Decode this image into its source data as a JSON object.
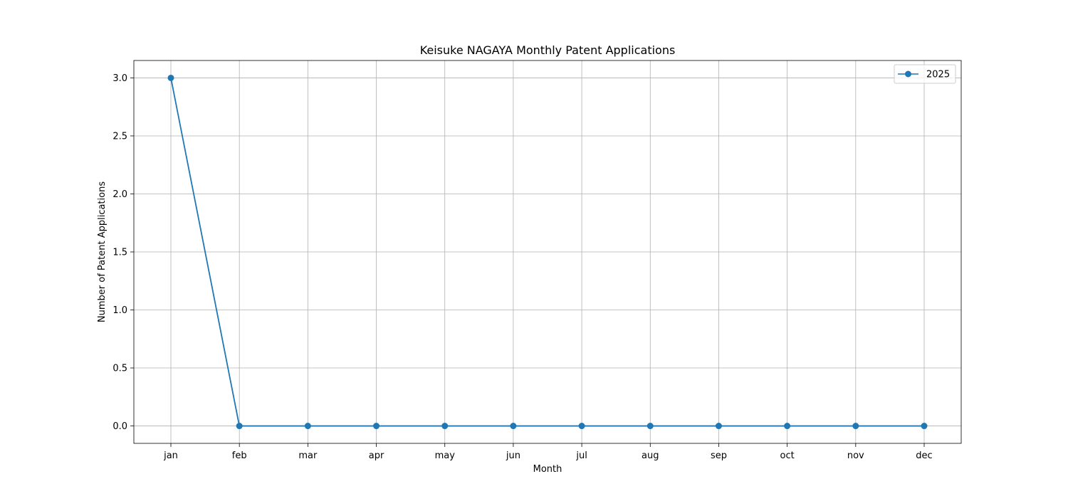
{
  "chart_data": {
    "type": "line",
    "title": "Keisuke NAGAYA Monthly Patent Applications",
    "xlabel": "Month",
    "ylabel": "Number of Patent Applications",
    "categories": [
      "jan",
      "feb",
      "mar",
      "apr",
      "may",
      "jun",
      "jul",
      "aug",
      "sep",
      "oct",
      "nov",
      "dec"
    ],
    "series": [
      {
        "name": "2025",
        "values": [
          3,
          0,
          0,
          0,
          0,
          0,
          0,
          0,
          0,
          0,
          0,
          0
        ],
        "color": "#1f77b4",
        "marker": "circle"
      }
    ],
    "ylim": [
      -0.15,
      3.15
    ],
    "yticks": [
      0.0,
      0.5,
      1.0,
      1.5,
      2.0,
      2.5,
      3.0
    ],
    "ytick_labels": [
      "0.0",
      "0.5",
      "1.0",
      "1.5",
      "2.0",
      "2.5",
      "3.0"
    ],
    "grid": true,
    "legend_position": "top-right"
  }
}
